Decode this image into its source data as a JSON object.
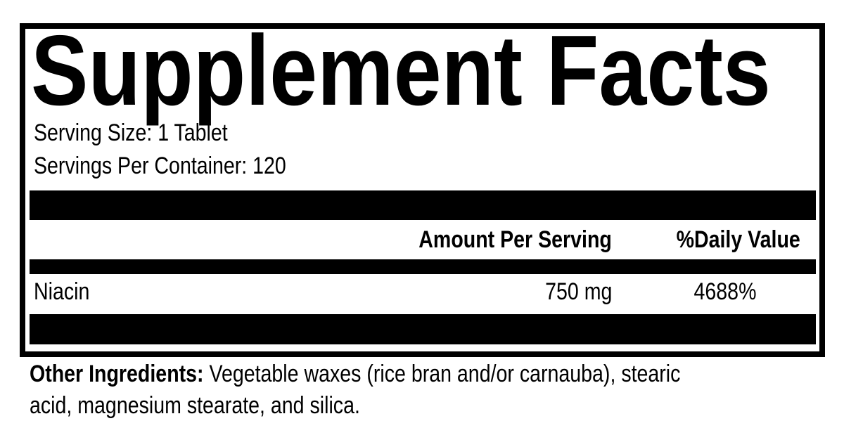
{
  "title": "Supplement Facts",
  "serving_size": "Serving Size: 1 Tablet",
  "servings_per_container": "Servings Per Container: 120",
  "table": {
    "headers": {
      "amount": "Amount Per Serving",
      "daily_value": "%Daily Value"
    },
    "rows": [
      {
        "name": "Niacin",
        "amount": "750 mg",
        "daily_value": "4688%"
      }
    ]
  },
  "other_ingredients": {
    "label": "Other Ingredients:",
    "line1": " Vegetable waxes (rice bran and/or carnauba), stearic",
    "line2": "acid, magnesium stearate, and silica."
  }
}
